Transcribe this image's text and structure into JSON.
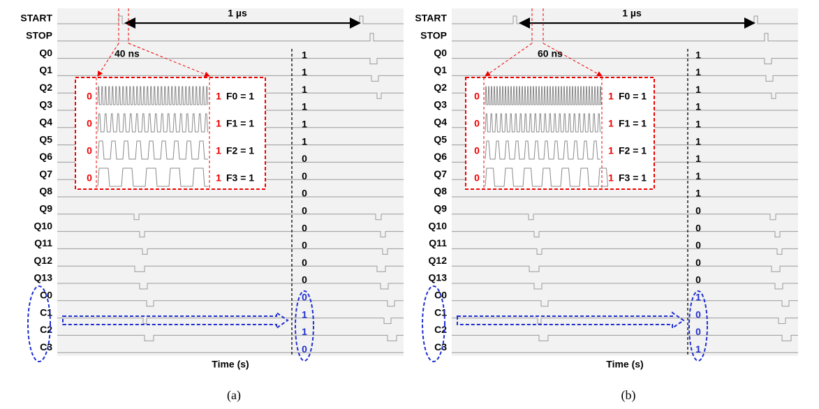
{
  "panels": [
    {
      "caption": "(a)",
      "interval_label": "1 µs",
      "zoom_label": "40 ns",
      "x_label": "Time (s)",
      "signals": [
        "START",
        "STOP",
        "Q0",
        "Q1",
        "Q2",
        "Q3",
        "Q4",
        "Q5",
        "Q6",
        "Q7",
        "Q8",
        "Q9",
        "Q10",
        "Q11",
        "Q12",
        "Q13",
        "C0",
        "C1",
        "C2",
        "C3"
      ],
      "bits": [
        1,
        1,
        1,
        1,
        1,
        1,
        0,
        0,
        0,
        0,
        0,
        0,
        0,
        0,
        0,
        1,
        1,
        0
      ],
      "zoom_rows": [
        {
          "start": "0",
          "end": "1",
          "flag": "F0 = 1"
        },
        {
          "start": "0",
          "end": "1",
          "flag": "F1 = 1"
        },
        {
          "start": "0",
          "end": "1",
          "flag": "F2 = 1"
        },
        {
          "start": "0",
          "end": "1",
          "flag": "F3 = 1"
        }
      ]
    },
    {
      "caption": "(b)",
      "interval_label": "1 µs",
      "zoom_label": "60 ns",
      "x_label": "Time (s)",
      "signals": [
        "START",
        "STOP",
        "Q0",
        "Q1",
        "Q2",
        "Q3",
        "Q4",
        "Q5",
        "Q6",
        "Q7",
        "Q8",
        "Q9",
        "Q10",
        "Q11",
        "Q12",
        "Q13",
        "C0",
        "C1",
        "C2",
        "C3"
      ],
      "bits": [
        1,
        1,
        1,
        1,
        1,
        1,
        1,
        1,
        1,
        0,
        0,
        0,
        0,
        0,
        1,
        0,
        0,
        1
      ],
      "zoom_rows": [
        {
          "start": "0",
          "end": "1",
          "flag": "F0 = 1"
        },
        {
          "start": "0",
          "end": "1",
          "flag": "F1 = 1"
        },
        {
          "start": "0",
          "end": "1",
          "flag": "F2 = 1"
        },
        {
          "start": "0",
          "end": "1",
          "flag": "F3 = 1"
        }
      ]
    }
  ]
}
